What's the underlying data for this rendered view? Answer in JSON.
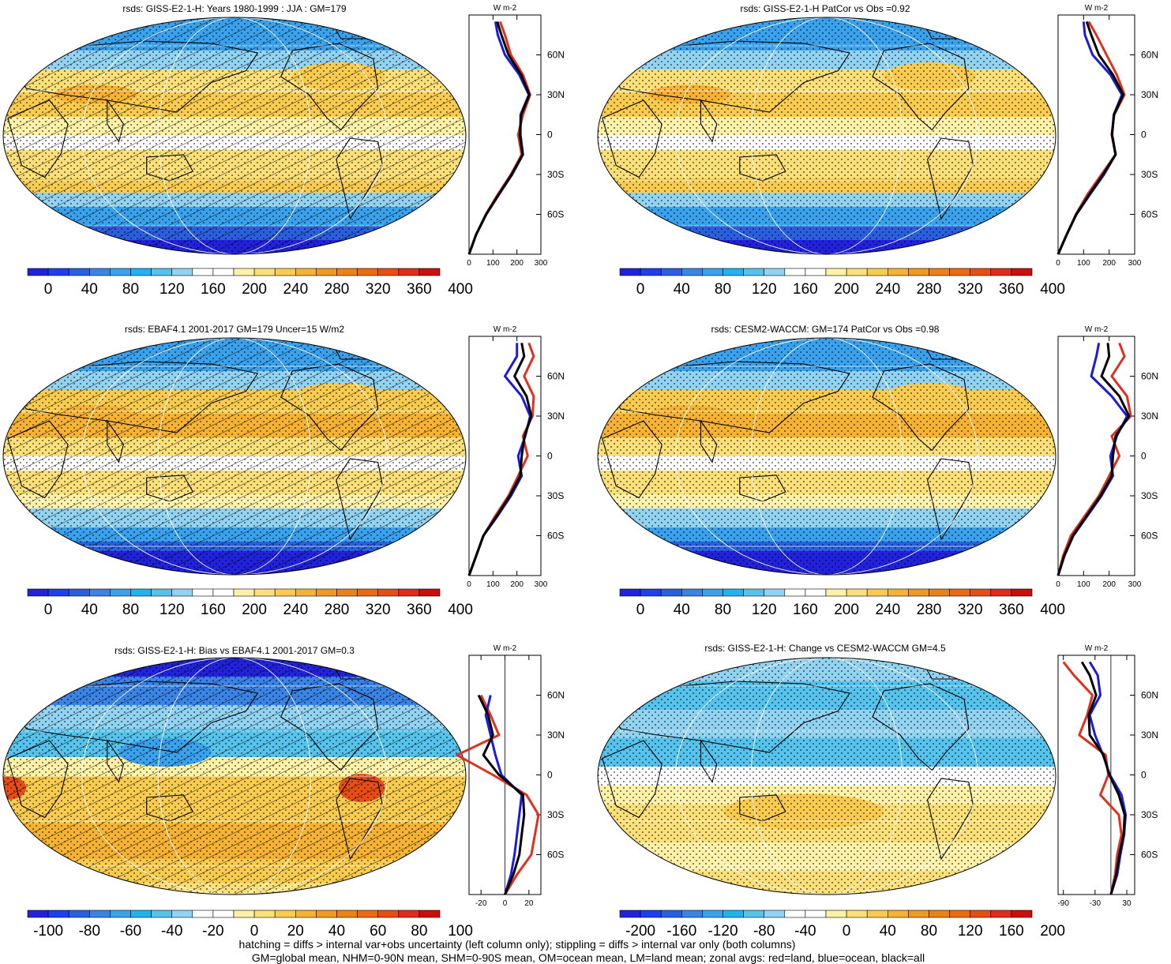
{
  "colors": {
    "blue_ramp": [
      "#2222dd",
      "#1e3ff0",
      "#2a60e0",
      "#3a84e6",
      "#3aa2ec",
      "#1fb3ef",
      "#55c3ec",
      "#92d3f1"
    ],
    "warm_ramp": [
      "#fff2a8",
      "#fbe079",
      "#f9cc50",
      "#f5b233",
      "#f19a22",
      "#ee8113",
      "#ec6a10",
      "#e84d14",
      "#e22b1a",
      "#cc0d10"
    ],
    "neutral": "#ffffff",
    "land_line": "#e0301e",
    "ocean_line": "#1b1bd9",
    "all_line": "#000000"
  },
  "panels": [
    {
      "title": "rsds: GISS-E2-1-H: Years 1980-1999 : JJA : GM=179",
      "hatched": true,
      "colorbar_labels": [
        "0",
        "40",
        "80",
        "120",
        "160",
        "200",
        "240",
        "280",
        "320",
        "360",
        "400"
      ],
      "zonal": {
        "unit": "W m-2",
        "x_ticks": [
          "0",
          "100",
          "200",
          "300"
        ],
        "xlim": [
          0,
          300
        ],
        "lat_labels": [
          "60N",
          "30N",
          "0",
          "30S",
          "60S"
        ]
      },
      "chart_data": {
        "type": "line",
        "lat": [
          -90,
          -75,
          -60,
          -45,
          -30,
          -15,
          0,
          15,
          30,
          45,
          60,
          75,
          85
        ],
        "series": [
          {
            "name": "land",
            "values": [
              0,
              30,
              70,
              120,
              175,
              220,
              205,
              225,
              255,
              225,
              175,
              150,
              130
            ]
          },
          {
            "name": "ocean",
            "values": [
              0,
              30,
              72,
              125,
              180,
              225,
              215,
              215,
              250,
              210,
              150,
              120,
              110
            ]
          },
          {
            "name": "all",
            "values": [
              0,
              30,
              72,
              124,
              178,
              224,
              212,
              218,
              252,
              218,
              165,
              135,
              118
            ]
          }
        ]
      }
    },
    {
      "title": "rsds: GISS-E2-1-H PatCor vs Obs =0.92",
      "hatched": false,
      "colorbar_labels": [
        "0",
        "40",
        "80",
        "120",
        "160",
        "200",
        "240",
        "280",
        "320",
        "360",
        "400"
      ],
      "zonal": {
        "unit": "W m-2",
        "x_ticks": [
          "0",
          "100",
          "200",
          "300"
        ],
        "xlim": [
          0,
          300
        ],
        "lat_labels": [
          "60N",
          "30N",
          "0",
          "30S",
          "60S"
        ]
      },
      "chart_data": {
        "type": "line",
        "lat": [
          -90,
          -75,
          -60,
          -45,
          -30,
          -15,
          0,
          15,
          30,
          45,
          60,
          75,
          85
        ],
        "series": [
          {
            "name": "land",
            "values": [
              0,
              35,
              70,
              115,
              170,
              225,
              210,
              220,
              260,
              230,
              190,
              150,
              120
            ]
          },
          {
            "name": "ocean",
            "values": [
              0,
              34,
              72,
              125,
              180,
              225,
              212,
              218,
              250,
              205,
              135,
              105,
              100
            ]
          },
          {
            "name": "all",
            "values": [
              0,
              34,
              71,
              122,
              176,
              225,
              211,
              219,
              255,
              215,
              160,
              130,
              112
            ]
          }
        ]
      }
    },
    {
      "title": "rsds: EBAF4.1 2001-2017 GM=179 Uncer=15 W/m2",
      "hatched": true,
      "colorbar_labels": [
        "0",
        "40",
        "80",
        "120",
        "160",
        "200",
        "240",
        "280",
        "320",
        "360",
        "400"
      ],
      "zonal": {
        "unit": "W m-2",
        "x_ticks": [
          "0",
          "100",
          "200",
          "300"
        ],
        "xlim": [
          0,
          300
        ],
        "lat_labels": [
          "60N",
          "30N",
          "0",
          "30S",
          "60S"
        ]
      },
      "chart_data": {
        "type": "line",
        "lat": [
          -90,
          -75,
          -60,
          -45,
          -30,
          -15,
          0,
          15,
          30,
          45,
          60,
          75,
          85
        ],
        "series": [
          {
            "name": "land",
            "values": [
              0,
              30,
              60,
              110,
              165,
              205,
              245,
              225,
              265,
              270,
              230,
              270,
              250
            ]
          },
          {
            "name": "ocean",
            "values": [
              0,
              30,
              60,
              120,
              175,
              220,
              205,
              235,
              255,
              220,
              150,
              200,
              200
            ]
          },
          {
            "name": "all",
            "values": [
              0,
              30,
              60,
              116,
              170,
              214,
              220,
              232,
              260,
              240,
              190,
              230,
              220
            ]
          }
        ]
      }
    },
    {
      "title": "rsds: CESM2-WACCM: GM=174 PatCor vs Obs =0.98",
      "hatched": false,
      "colorbar_labels": [
        "0",
        "40",
        "80",
        "120",
        "160",
        "200",
        "240",
        "280",
        "320",
        "360",
        "400"
      ],
      "zonal": {
        "unit": "W m-2",
        "x_ticks": [
          "0",
          "100",
          "200",
          "300"
        ],
        "xlim": [
          0,
          300
        ],
        "lat_labels": [
          "60N",
          "30N",
          "0",
          "30S",
          "60S"
        ]
      },
      "chart_data": {
        "type": "line",
        "lat": [
          -90,
          -75,
          -60,
          -45,
          -30,
          -15,
          0,
          15,
          30,
          45,
          60,
          75,
          85
        ],
        "series": [
          {
            "name": "land",
            "values": [
              0,
              20,
              50,
              105,
              160,
              200,
              240,
              210,
              285,
              270,
              210,
              260,
              240
            ]
          },
          {
            "name": "ocean",
            "values": [
              0,
              25,
              60,
              115,
              170,
              215,
              205,
              230,
              270,
              210,
              130,
              150,
              160
            ]
          },
          {
            "name": "all",
            "values": [
              0,
              24,
              58,
              112,
              166,
              210,
              215,
              225,
              278,
              240,
              170,
              200,
              195
            ]
          }
        ]
      }
    },
    {
      "title": "rsds: GISS-E2-1-H: Bias vs EBAF4.1 2001-2017 GM=0.3",
      "hatched": true,
      "colorbar_labels": [
        "-100",
        "-80",
        "-60",
        "-40",
        "-20",
        "0",
        "20",
        "40",
        "60",
        "80",
        "100"
      ],
      "zonal": {
        "unit": "W m-2",
        "x_ticks": [
          "-20",
          "0",
          "20"
        ],
        "xlim": [
          -30,
          30
        ],
        "lat_labels": [
          "60N",
          "30N",
          "0",
          "30S",
          "60S"
        ]
      },
      "chart_data": {
        "type": "line",
        "lat": [
          -90,
          -75,
          -60,
          -45,
          -30,
          -15,
          0,
          15,
          30,
          45,
          60
        ],
        "series": [
          {
            "name": "land",
            "values": [
              0,
              10,
              22,
              25,
              28,
              18,
              -10,
              -40,
              -5,
              -12,
              -20
            ]
          },
          {
            "name": "ocean",
            "values": [
              0,
              5,
              8,
              10,
              12,
              14,
              -3,
              -8,
              -12,
              -16,
              -12
            ]
          },
          {
            "name": "all",
            "values": [
              0,
              7,
              12,
              14,
              16,
              15,
              -5,
              -18,
              -10,
              -14,
              -22
            ]
          }
        ]
      }
    },
    {
      "title": "rsds: GISS-E2-1-H: Change vs CESM2-WACCM GM=4.5",
      "hatched": false,
      "colorbar_labels": [
        "-200",
        "-160",
        "-120",
        "-80",
        "-40",
        "0",
        "40",
        "80",
        "120",
        "160",
        "200"
      ],
      "zonal": {
        "unit": "W m-2",
        "x_ticks": [
          "-90",
          "-30",
          "30"
        ],
        "xlim": [
          -100,
          45
        ],
        "lat_labels": [
          "60N",
          "30N",
          "0",
          "30S",
          "60S"
        ]
      },
      "chart_data": {
        "type": "line",
        "lat": [
          -90,
          -75,
          -60,
          -45,
          -30,
          -15,
          0,
          15,
          30,
          45,
          60,
          75,
          85
        ],
        "series": [
          {
            "name": "land",
            "values": [
              0,
              8,
              12,
              20,
              15,
              -20,
              -5,
              -10,
              -60,
              -45,
              -35,
              -70,
              -90
            ]
          },
          {
            "name": "ocean",
            "values": [
              0,
              12,
              18,
              25,
              28,
              20,
              -2,
              -15,
              -30,
              -40,
              -20,
              -25,
              -40
            ]
          },
          {
            "name": "all",
            "values": [
              0,
              10,
              16,
              24,
              26,
              15,
              -3,
              -14,
              -40,
              -42,
              -28,
              -40,
              -55
            ]
          }
        ]
      }
    }
  ],
  "footer": {
    "line1": "hatching = diffs > internal var+obs uncertainty (left column only); stippling = diffs > internal var only (both columns)",
    "line2": "GM=global mean, NHM=0-90N mean, SHM=0-90S mean, OM=ocean mean, LM=land mean; zonal avgs: red=land, blue=ocean, black=all"
  }
}
